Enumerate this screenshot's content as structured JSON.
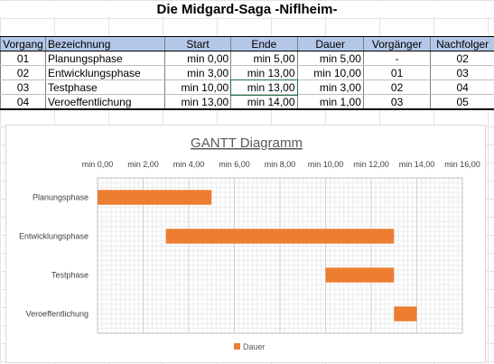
{
  "title": "Die Midgard-Saga -Niflheim-",
  "table": {
    "headers": [
      "Vorgang",
      "Bezeichnung",
      "Start",
      "Ende",
      "Dauer",
      "Vorgänger",
      "Nachfolger"
    ],
    "rows": [
      [
        "01",
        "Planungsphase",
        "min 0,00",
        "min 5,00",
        "min 5,00",
        "-",
        "02"
      ],
      [
        "02",
        "Entwicklungsphase",
        "min 3,00",
        "min 13,00",
        "min 10,00",
        "01",
        "03"
      ],
      [
        "03",
        "Testphase",
        "min 10,00",
        "min 13,00",
        "min 3,00",
        "02",
        "04"
      ],
      [
        "04",
        "Veroeffentlichung",
        "min 13,00",
        "min 14,00",
        "min 1,00",
        "03",
        "05"
      ]
    ]
  },
  "chart_data": {
    "type": "bar",
    "orientation": "horizontal-stacked-gantt",
    "title": "GANTT Diagramm",
    "categories": [
      "Planungsphase",
      "Entwicklungsphase",
      "Testphase",
      "Veroeffentlichung"
    ],
    "series": [
      {
        "name": "Start",
        "values": [
          0,
          3,
          10,
          13
        ],
        "visible": false
      },
      {
        "name": "Dauer",
        "values": [
          5,
          10,
          3,
          1
        ],
        "color": "#ed7d31"
      }
    ],
    "xlim": [
      0,
      16
    ],
    "x_ticks": [
      0,
      2,
      4,
      6,
      8,
      10,
      12,
      14,
      16
    ],
    "x_tick_labels": [
      "min 0,00",
      "min 2,00",
      "min 4,00",
      "min 6,00",
      "min 8,00",
      "min 10,00",
      "min 12,00",
      "min 14,00",
      "min 16,00"
    ],
    "x_axis_position": "top",
    "grid": true,
    "legend": {
      "position": "bottom",
      "entries": [
        "Dauer"
      ]
    }
  }
}
